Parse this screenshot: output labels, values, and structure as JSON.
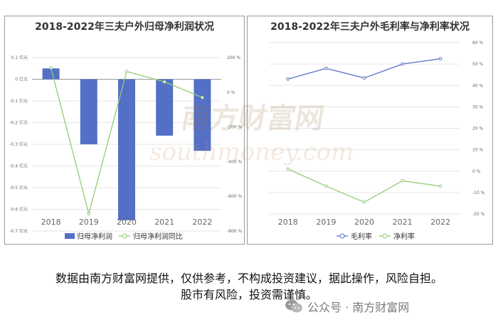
{
  "colors": {
    "bar": "#5470c6",
    "green": "#91cc75",
    "axis_text": "#666666",
    "grid": "#e6e6e6",
    "watermark": "#c0a080"
  },
  "chart_data": [
    {
      "type": "bar",
      "title": "2018-2022年三夫户外归母净利润状况",
      "categories": [
        "2018",
        "2019",
        "2020",
        "2021",
        "2022"
      ],
      "series": [
        {
          "name": "归母净利润",
          "type": "bar",
          "axis": "left",
          "values": [
            0.05,
            -0.3,
            -0.65,
            -0.26,
            -0.33
          ]
        },
        {
          "name": "归母净利润同比",
          "type": "line",
          "axis": "right",
          "values": [
            140,
            -700,
            120,
            60,
            -30
          ]
        }
      ],
      "left_axis": {
        "ylim": [
          -0.7,
          0.1
        ],
        "ticks": [
          "0.1 亿元",
          "0 亿元",
          "-0.1 亿元",
          "-0.2 亿元",
          "-0.3 亿元",
          "-0.4 亿元",
          "-0.5 亿元",
          "-0.6 亿元",
          "-0.7 亿元"
        ]
      },
      "right_axis": {
        "ylim": [
          -800,
          200
        ],
        "ticks": [
          "200 %",
          "0 %",
          "-200 %",
          "-400 %",
          "-600 %",
          "-800 %"
        ]
      },
      "legend_position": "bottom"
    },
    {
      "type": "line",
      "title": "2018-2022年三夫户外毛利率与净利率状况",
      "categories": [
        "2018",
        "2019",
        "2020",
        "2021",
        "2022"
      ],
      "series": [
        {
          "name": "毛利率",
          "values": [
            43,
            48,
            43.5,
            50,
            52.5
          ]
        },
        {
          "name": "净利率",
          "values": [
            1,
            -7,
            -14.5,
            -4.5,
            -7
          ]
        }
      ],
      "left_axis": {
        "ylim": [
          -20,
          60
        ],
        "ticks": []
      },
      "right_axis": {
        "ylim": [
          -20,
          60
        ],
        "ticks": [
          "60 %",
          "50 %",
          "40 %",
          "30 %",
          "20 %",
          "10 %",
          "0 %",
          "-10 %",
          "-20 %"
        ]
      },
      "legend_position": "bottom"
    }
  ],
  "footer": {
    "line1": "数据由南方财富网提供，仅供参考，不构成投资建议，据此操作，风险自担。",
    "line2": "股市有风险，投资需谨慎。",
    "account": "公众号 · 南方财富网"
  },
  "watermark": {
    "text_cn": "南方财富网",
    "text_en": "southmoney.com"
  }
}
